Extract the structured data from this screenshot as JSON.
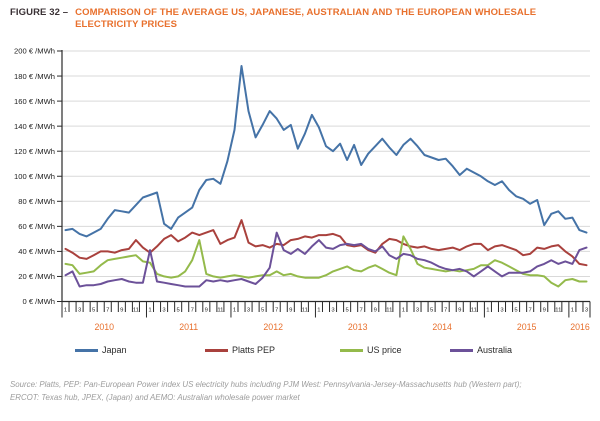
{
  "figure": {
    "label": "FIGURE 32 –",
    "title_line1": "COMPARISON OF THE AVERAGE US, JAPANESE, AUSTRALIAN AND THE EUROPEAN WHOLESALE",
    "title_line2": "ELECTRICITY PRICES"
  },
  "source": {
    "line1": "Source: Platts, PEP: Pan-European Power index US electricity hubs including PJM West: Pennsylvania-Jersey-Massachusetts hub (Western part);",
    "line2": "ERCOT: Texas hub, JPEX, (Japan) and AEMO: Australian wholesale power market"
  },
  "colors": {
    "title_orange": "#e8702d",
    "figure_label_dark": "#3a3135",
    "axis": "#2a2a2a",
    "gridline": "#d9d9d9",
    "source_gray": "#9c9c9c"
  },
  "chart_data": {
    "type": "line",
    "unit": "€/MWh",
    "x_start": "2010-01",
    "x_end": "2016-03",
    "months_total": 75,
    "years": [
      2010,
      2011,
      2012,
      2013,
      2014,
      2015,
      2016
    ],
    "month_tick_labels": [
      "1",
      "3",
      "5",
      "7",
      "9",
      "11"
    ],
    "ylim": [
      0,
      200
    ],
    "y_ticks": [
      0,
      20,
      40,
      60,
      80,
      100,
      120,
      140,
      160,
      180,
      200
    ],
    "y_tick_suffix": " € /MWh",
    "grid": "horizontal",
    "legend_position": "bottom",
    "series": [
      {
        "name": "Japan",
        "color": "#4573a7",
        "values": [
          57,
          58,
          54,
          52,
          55,
          58,
          66,
          73,
          72,
          71,
          77,
          83,
          85,
          87,
          62,
          58,
          67,
          71,
          75,
          89,
          97,
          98,
          94,
          112,
          137,
          188,
          152,
          131,
          141,
          152,
          146,
          137,
          141,
          122,
          134,
          149,
          139,
          124,
          120,
          126,
          113,
          125,
          109,
          118,
          124,
          130,
          123,
          117,
          125,
          130,
          124,
          117,
          115,
          113,
          114,
          108,
          101,
          106,
          103,
          100,
          96,
          93,
          96,
          89,
          84,
          82,
          78,
          81,
          61,
          70,
          72,
          66,
          67,
          57,
          55
        ]
      },
      {
        "name": "Platts PEP",
        "color": "#a9413d",
        "values": [
          42,
          39,
          35,
          34,
          37,
          40,
          40,
          39,
          41,
          42,
          49,
          43,
          39,
          44,
          50,
          53,
          48,
          51,
          55,
          53,
          55,
          57,
          46,
          49,
          51,
          65,
          47,
          44,
          45,
          43,
          46,
          45,
          49,
          50,
          52,
          51,
          53,
          53,
          54,
          52,
          45,
          44,
          45,
          41,
          39,
          46,
          50,
          49,
          46,
          44,
          43,
          44,
          42,
          41,
          42,
          43,
          41,
          44,
          46,
          46,
          41,
          44,
          45,
          43,
          41,
          37,
          38,
          43,
          42,
          44,
          45,
          40,
          36,
          30,
          29
        ]
      },
      {
        "name": "US price",
        "color": "#94ba4b",
        "values": [
          30,
          29,
          22,
          23,
          24,
          29,
          33,
          34,
          35,
          36,
          37,
          32,
          31,
          22,
          20,
          19,
          20,
          24,
          33,
          49,
          22,
          20,
          19,
          20,
          21,
          20,
          19,
          20,
          21,
          21,
          24,
          21,
          22,
          20,
          19,
          19,
          19,
          21,
          24,
          26,
          28,
          25,
          24,
          27,
          29,
          26,
          23,
          21,
          52,
          42,
          30,
          27,
          26,
          25,
          24,
          25,
          24,
          25,
          26,
          29,
          29,
          33,
          31,
          28,
          25,
          22,
          21,
          21,
          20,
          15,
          12,
          17,
          18,
          16,
          16
        ]
      },
      {
        "name": "Australia",
        "color": "#6c5199",
        "values": [
          21,
          24,
          12,
          13,
          13,
          14,
          16,
          17,
          18,
          16,
          15,
          15,
          41,
          16,
          15,
          14,
          13,
          12,
          12,
          12,
          17,
          16,
          17,
          16,
          17,
          18,
          16,
          14,
          19,
          27,
          55,
          41,
          38,
          42,
          38,
          44,
          49,
          43,
          42,
          45,
          46,
          45,
          46,
          42,
          40,
          44,
          37,
          34,
          38,
          37,
          34,
          33,
          31,
          28,
          26,
          25,
          26,
          24,
          20,
          24,
          28,
          24,
          20,
          23,
          23,
          23,
          24,
          28,
          30,
          33,
          30,
          32,
          30,
          41,
          43
        ]
      }
    ]
  }
}
